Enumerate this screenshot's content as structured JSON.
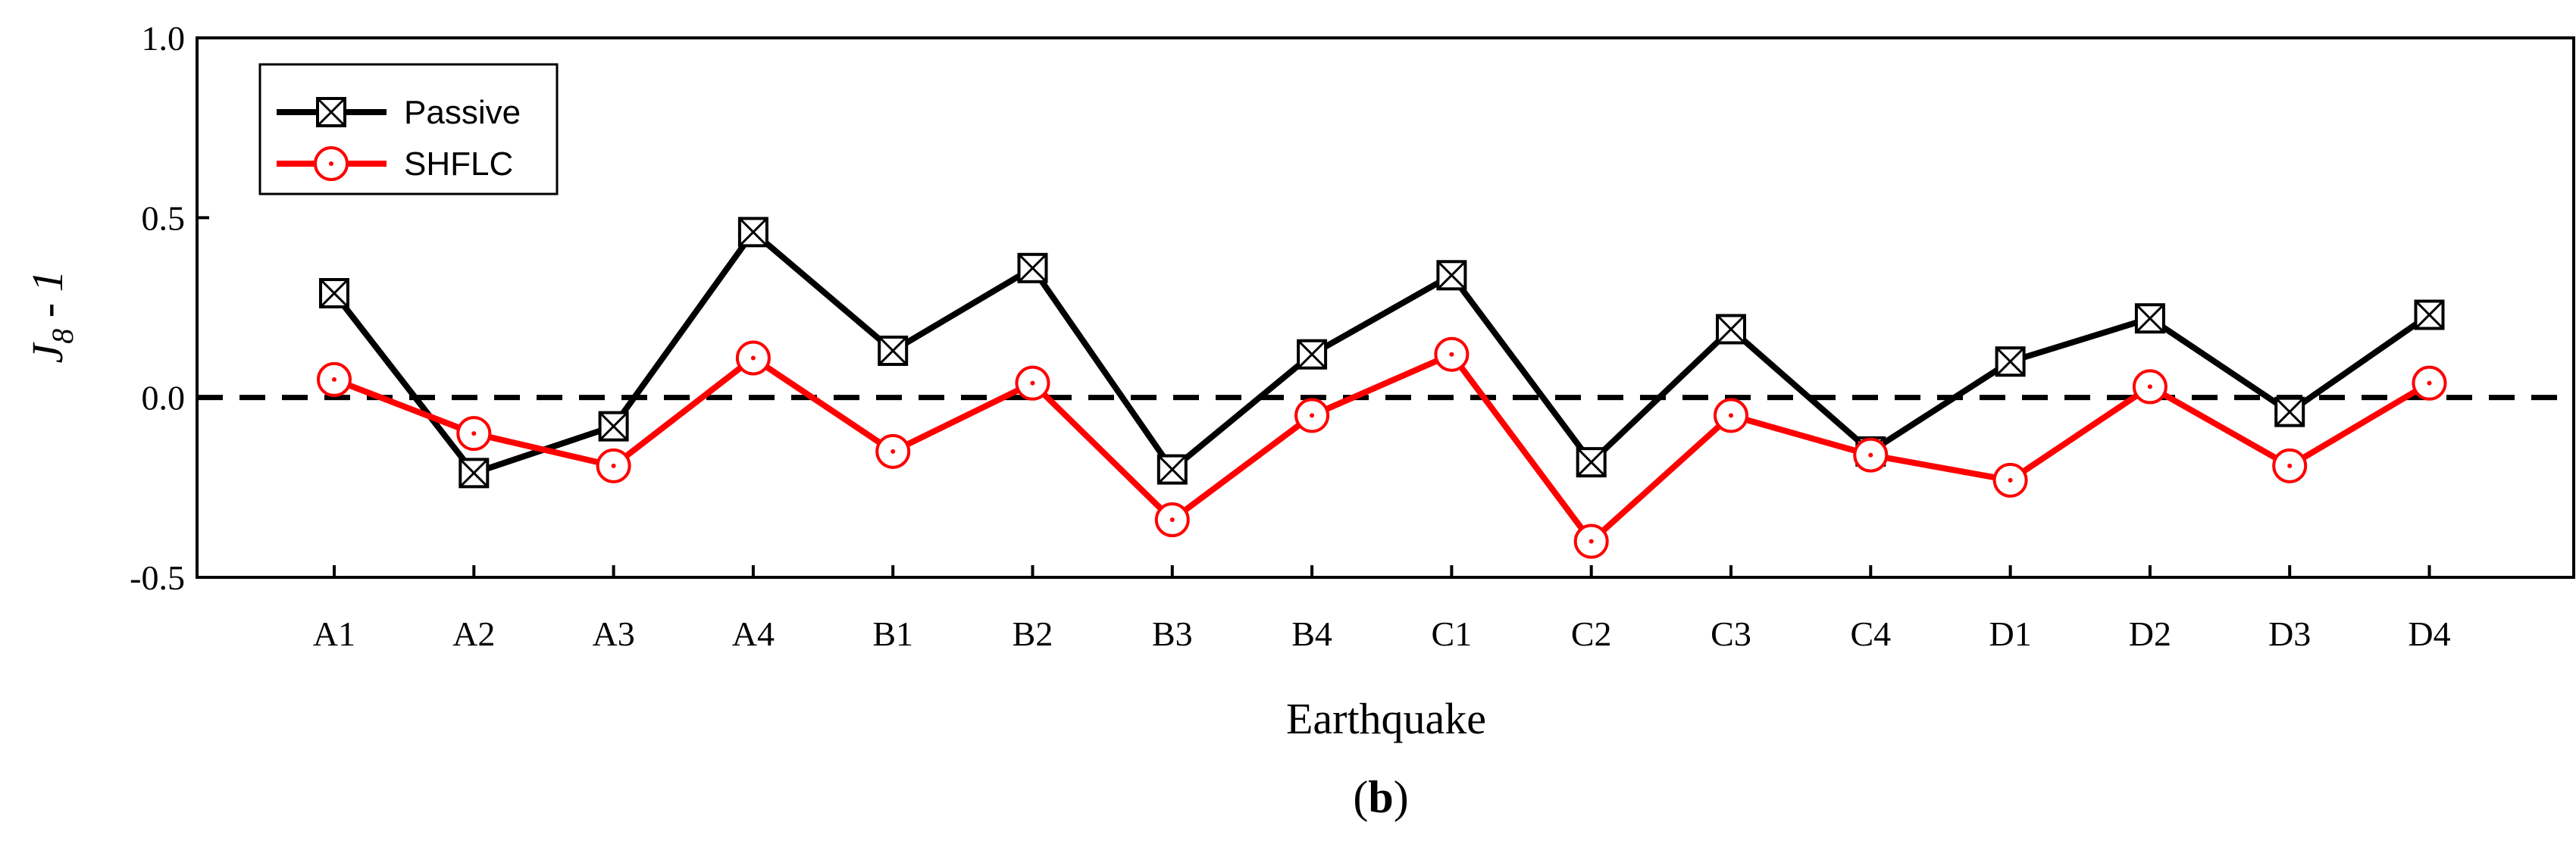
{
  "chart_data": {
    "type": "line",
    "categories": [
      "A1",
      "A2",
      "A3",
      "A4",
      "B1",
      "B2",
      "B3",
      "B4",
      "C1",
      "C2",
      "C3",
      "C4",
      "D1",
      "D2",
      "D3",
      "D4"
    ],
    "series": [
      {
        "name": "Passive",
        "color": "#000000",
        "marker": "crossed-square",
        "values": [
          0.29,
          -0.21,
          -0.08,
          0.46,
          0.13,
          0.36,
          -0.2,
          0.12,
          0.34,
          -0.18,
          0.19,
          -0.15,
          0.1,
          0.22,
          -0.04,
          0.23
        ]
      },
      {
        "name": "SHFLC",
        "color": "#ff0000",
        "marker": "dotted-circle",
        "values": [
          0.05,
          -0.1,
          -0.19,
          0.11,
          -0.15,
          0.04,
          -0.34,
          -0.05,
          0.12,
          -0.4,
          -0.05,
          -0.16,
          -0.23,
          0.03,
          -0.19,
          0.04
        ]
      }
    ],
    "reference_line": {
      "y": 0.0,
      "style": "dashed"
    },
    "ylim": [
      -0.5,
      1.0
    ],
    "yticks": [
      {
        "value": -0.5,
        "label": "-0.5"
      },
      {
        "value": 0.0,
        "label": "0.0"
      },
      {
        "value": 0.5,
        "label": "0.5"
      },
      {
        "value": 1.0,
        "label": "1.0"
      }
    ],
    "xlabel": "Earthquake",
    "ylabel": {
      "base": "J",
      "sub": "8",
      "rest": " - 1"
    },
    "legend_position": "top-left",
    "panel_label": {
      "open": "(",
      "letter": "b",
      "close": ")"
    }
  }
}
